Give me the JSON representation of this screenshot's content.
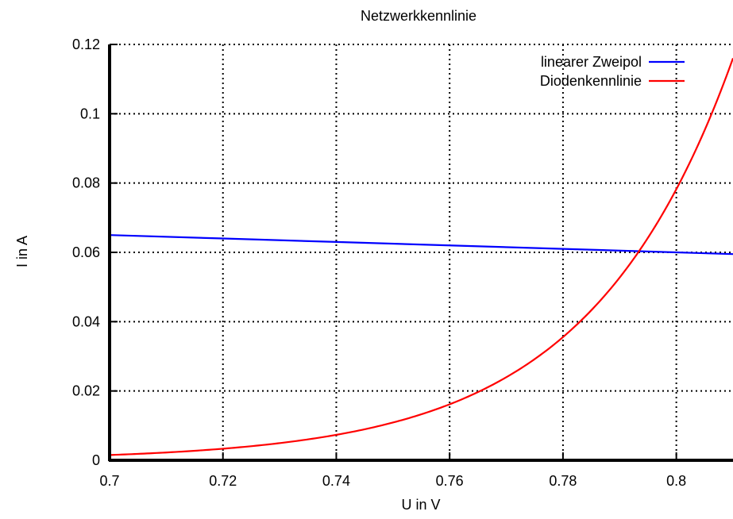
{
  "chart_data": {
    "type": "line",
    "title": "Netzwerkkennlinie",
    "xlabel": "U in V",
    "ylabel": "I in A",
    "xlim": [
      0.7,
      0.81
    ],
    "ylim": [
      0,
      0.12
    ],
    "x_ticks": [
      0.7,
      0.72,
      0.74,
      0.76,
      0.78,
      0.8
    ],
    "x_tick_labels": [
      "0.7",
      "0.72",
      "0.74",
      "0.76",
      "0.78",
      "0.8"
    ],
    "y_ticks": [
      0,
      0.02,
      0.04,
      0.06,
      0.08,
      0.1,
      0.12
    ],
    "y_tick_labels": [
      "0",
      "0.02",
      "0.04",
      "0.06",
      "0.08",
      "0.1",
      "0.12"
    ],
    "grid": true,
    "legend_position": "top-right",
    "series": [
      {
        "name": "linearer Zweipol",
        "color": "#0000ff",
        "x": [
          0.7,
          0.72,
          0.74,
          0.76,
          0.78,
          0.8,
          0.81
        ],
        "y": [
          0.065,
          0.064,
          0.063,
          0.062,
          0.061,
          0.06,
          0.0595
        ]
      },
      {
        "name": "Diodenkennlinie",
        "color": "#ff0000",
        "x": [
          0.7,
          0.71,
          0.72,
          0.73,
          0.74,
          0.75,
          0.76,
          0.77,
          0.78,
          0.79,
          0.795,
          0.8,
          0.805,
          0.81
        ],
        "y": [
          0.0015,
          0.0023,
          0.0034,
          0.0049,
          0.0073,
          0.011,
          0.016,
          0.0235,
          0.035,
          0.052,
          0.064,
          0.078,
          0.096,
          0.12
        ]
      }
    ]
  }
}
